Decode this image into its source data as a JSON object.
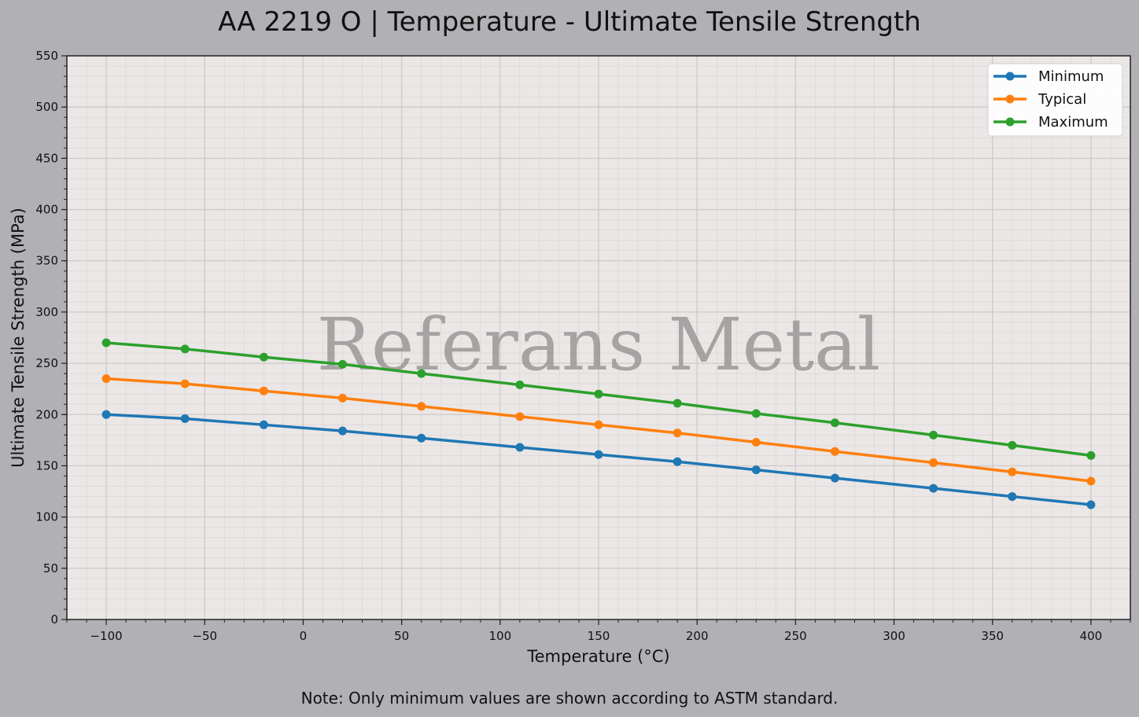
{
  "chart_data": {
    "type": "line",
    "title": "AA 2219 O | Temperature - Ultimate Tensile Strength",
    "xlabel": "Temperature (°C)",
    "ylabel": "Ultimate Tensile Strength (MPa)",
    "xlim": [
      -120,
      420
    ],
    "ylim": [
      0,
      550
    ],
    "xticks": [
      -100,
      -50,
      0,
      50,
      100,
      150,
      200,
      250,
      300,
      350,
      400
    ],
    "xtick_labels": [
      "−100",
      "−50",
      "0",
      "50",
      "100",
      "150",
      "200",
      "250",
      "300",
      "350",
      "400"
    ],
    "yticks": [
      0,
      50,
      100,
      150,
      200,
      250,
      300,
      350,
      400,
      450,
      500,
      550
    ],
    "ytick_labels": [
      "0",
      "50",
      "100",
      "150",
      "200",
      "250",
      "300",
      "350",
      "400",
      "450",
      "500",
      "550"
    ],
    "grid": true,
    "legend_position": "top-right",
    "x": [
      -100,
      -60,
      -20,
      20,
      60,
      110,
      150,
      190,
      230,
      270,
      320,
      360,
      400
    ],
    "series": [
      {
        "name": "Minimum",
        "color": "#1f77b4",
        "values": [
          200,
          196,
          190,
          184,
          177,
          168,
          161,
          154,
          146,
          138,
          128,
          120,
          112
        ]
      },
      {
        "name": "Typical",
        "color": "#ff7f0e",
        "values": [
          235,
          230,
          223,
          216,
          208,
          198,
          190,
          182,
          173,
          164,
          153,
          144,
          135
        ]
      },
      {
        "name": "Maximum",
        "color": "#2ca02c",
        "values": [
          270,
          264,
          256,
          249,
          240,
          229,
          220,
          211,
          201,
          192,
          180,
          170,
          160
        ]
      }
    ],
    "watermark": "Referans Metal",
    "note": "Note: Only minimum values are shown according to ASTM standard."
  }
}
